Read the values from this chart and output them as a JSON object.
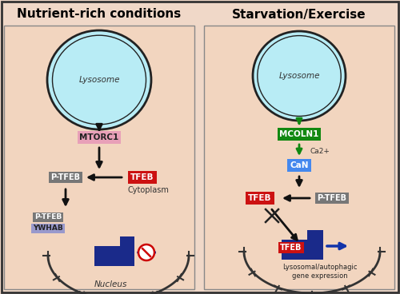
{
  "fig_w": 5.0,
  "fig_h": 3.68,
  "bg_color": "#f0d8c8",
  "panel_bg": "#f0d8c8",
  "title_left": "Nutrient-rich conditions",
  "title_right": "Starvation/Exercise",
  "lysosome_fill": "#b8ecf5",
  "lysosome_border": "#222222",
  "lysosome_label": "Lysosome",
  "mtorc1_fill": "#e8a0b8",
  "mtorc1_text": "MTORC1",
  "mcoln1_fill": "#118811",
  "mcoln1_text": "MCOLN1",
  "can_fill": "#4488ee",
  "can_text": "CaN",
  "ca_text": "Ca2+",
  "tfeb_fill": "#cc1111",
  "tfeb_text": "TFEB",
  "ptfeb_fill": "#777777",
  "ptfeb_text": "P-TFEB",
  "ywhab_fill": "#9999cc",
  "ywhab_text": "YWHAB",
  "cytoplasm_text": "Cytoplasm",
  "nucleus_text": "Nucleus",
  "lysosomal_text": "Lysosomal/autophagic\ngene expression",
  "arrow_color": "#111111",
  "green_color": "#118811",
  "blue_color": "#1133aa",
  "dna_blue": "#1a2a8a",
  "red_color": "#cc0000"
}
